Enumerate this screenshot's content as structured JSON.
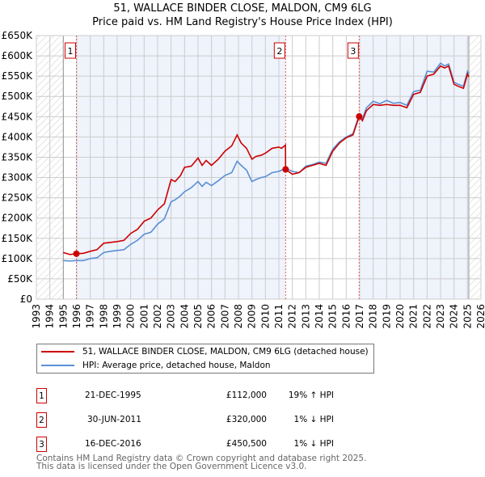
{
  "title": "51, WALLACE BINDER CLOSE, MALDON, CM9 6LG",
  "subtitle": "Price paid vs. HM Land Registry's House Price Index (HPI)",
  "legend": {
    "red_label": "51, WALLACE BINDER CLOSE, MALDON, CM9 6LG (detached house)",
    "blue_label": "HPI: Average price, detached house, Maldon"
  },
  "sales": [
    {
      "num": "1",
      "date": "21-DEC-1995",
      "price": "£112,000",
      "hpi": "19% ↑ HPI"
    },
    {
      "num": "2",
      "date": "30-JUN-2011",
      "price": "£320,000",
      "hpi": "1% ↓ HPI"
    },
    {
      "num": "3",
      "date": "16-DEC-2016",
      "price": "£450,500",
      "hpi": "1% ↓ HPI"
    }
  ],
  "footer": {
    "line1": "Contains HM Land Registry data © Crown copyright and database right 2025.",
    "line2": "This data is licensed under the Open Government Licence v3.0."
  },
  "colors": {
    "red": "#cc0000",
    "blue": "#5b8fd4",
    "band": "#eef3fc"
  },
  "chart_data": {
    "type": "line",
    "title": "51, WALLACE BINDER CLOSE, MALDON, CM9 6LG",
    "xlim": [
      1993,
      2026
    ],
    "ylim": [
      0,
      650000
    ],
    "x_ticks": [
      "1993",
      "1994",
      "1995",
      "1996",
      "1997",
      "1998",
      "1999",
      "2000",
      "2001",
      "2002",
      "2003",
      "2004",
      "2005",
      "2006",
      "2007",
      "2008",
      "2009",
      "2010",
      "2011",
      "2012",
      "2013",
      "2014",
      "2015",
      "2016",
      "2017",
      "2018",
      "2019",
      "2020",
      "2021",
      "2022",
      "2023",
      "2024",
      "2025",
      "2026"
    ],
    "y_ticks": [
      {
        "v": 0,
        "label": "£0"
      },
      {
        "v": 50000,
        "label": "£50K"
      },
      {
        "v": 100000,
        "label": "£100K"
      },
      {
        "v": 150000,
        "label": "£150K"
      },
      {
        "v": 200000,
        "label": "£200K"
      },
      {
        "v": 250000,
        "label": "£250K"
      },
      {
        "v": 300000,
        "label": "£300K"
      },
      {
        "v": 350000,
        "label": "£350K"
      },
      {
        "v": 400000,
        "label": "£400K"
      },
      {
        "v": 450000,
        "label": "£450K"
      },
      {
        "v": 500000,
        "label": "£500K"
      },
      {
        "v": 550000,
        "label": "£550K"
      },
      {
        "v": 600000,
        "label": "£600K"
      },
      {
        "v": 650000,
        "label": "£650K"
      }
    ],
    "data_range": [
      1995,
      2025.1
    ],
    "sale_points": [
      {
        "x": 1995.97,
        "y": 112000,
        "label": "1"
      },
      {
        "x": 2011.5,
        "y": 320000,
        "label": "2"
      },
      {
        "x": 2016.96,
        "y": 450500,
        "label": "3"
      }
    ],
    "series": [
      {
        "name": "51, WALLACE BINDER CLOSE, MALDON, CM9 6LG (detached house)",
        "color": "#cc0000",
        "x": [
          1995,
          1995.5,
          1995.97,
          1996.5,
          1997,
          1997.5,
          1998,
          1998.5,
          1999,
          1999.5,
          2000,
          2000.5,
          2001,
          2001.5,
          2002,
          2002.5,
          2003,
          2003.3,
          2003.7,
          2004,
          2004.5,
          2005,
          2005.3,
          2005.6,
          2006,
          2006.5,
          2007,
          2007.5,
          2007.9,
          2008.2,
          2008.6,
          2009,
          2009.3,
          2009.7,
          2010,
          2010.5,
          2011,
          2011.2,
          2011.49,
          2011.5,
          2012,
          2012.5,
          2013,
          2013.5,
          2014,
          2014.5,
          2015,
          2015.5,
          2016,
          2016.5,
          2016.96,
          2017.2,
          2017.5,
          2018,
          2018.5,
          2019,
          2019.5,
          2020,
          2020.5,
          2021,
          2021.5,
          2022,
          2022.5,
          2023,
          2023.3,
          2023.6,
          2024,
          2024.3,
          2024.7,
          2025,
          2025.1
        ],
        "y": [
          115000,
          110000,
          112000,
          113000,
          118000,
          122000,
          138000,
          140000,
          142000,
          145000,
          162000,
          172000,
          192000,
          200000,
          220000,
          235000,
          295000,
          290000,
          305000,
          325000,
          328000,
          348000,
          330000,
          342000,
          330000,
          345000,
          365000,
          378000,
          405000,
          385000,
          372000,
          345000,
          352000,
          355000,
          360000,
          372000,
          375000,
          372000,
          380000,
          320000,
          308000,
          312000,
          325000,
          330000,
          335000,
          330000,
          365000,
          385000,
          398000,
          405000,
          450500,
          440000,
          465000,
          480000,
          478000,
          480000,
          478000,
          478000,
          472000,
          505000,
          510000,
          550000,
          555000,
          575000,
          570000,
          575000,
          530000,
          525000,
          520000,
          555000,
          548000
        ]
      },
      {
        "name": "HPI: Average price, detached house, Maldon",
        "color": "#5b8fd4",
        "x": [
          1995,
          1995.5,
          1995.97,
          1996.5,
          1997,
          1997.5,
          1998,
          1998.5,
          1999,
          1999.5,
          2000,
          2000.5,
          2001,
          2001.5,
          2002,
          2002.5,
          2003,
          2003.3,
          2003.7,
          2004,
          2004.5,
          2005,
          2005.3,
          2005.6,
          2006,
          2006.5,
          2007,
          2007.5,
          2007.9,
          2008.2,
          2008.6,
          2009,
          2009.3,
          2009.7,
          2010,
          2010.5,
          2011,
          2011.2,
          2011.5,
          2012,
          2012.5,
          2013,
          2013.5,
          2014,
          2014.5,
          2015,
          2015.5,
          2016,
          2016.5,
          2016.96,
          2017.2,
          2017.5,
          2018,
          2018.5,
          2019,
          2019.5,
          2020,
          2020.5,
          2021,
          2021.5,
          2022,
          2022.5,
          2023,
          2023.3,
          2023.6,
          2024,
          2024.3,
          2024.7,
          2025,
          2025.1
        ],
        "y": [
          95000,
          94000,
          95000,
          95000,
          100000,
          102000,
          115000,
          118000,
          120000,
          122000,
          135000,
          145000,
          160000,
          165000,
          185000,
          198000,
          240000,
          245000,
          255000,
          265000,
          275000,
          290000,
          278000,
          288000,
          280000,
          292000,
          305000,
          312000,
          340000,
          330000,
          318000,
          290000,
          295000,
          300000,
          302000,
          312000,
          315000,
          318000,
          323000,
          315000,
          312000,
          328000,
          332000,
          338000,
          335000,
          370000,
          388000,
          400000,
          408000,
          455000,
          445000,
          472000,
          488000,
          482000,
          490000,
          483000,
          485000,
          478000,
          512000,
          515000,
          562000,
          560000,
          582000,
          575000,
          580000,
          535000,
          530000,
          525000,
          562000,
          555000
        ]
      }
    ]
  }
}
